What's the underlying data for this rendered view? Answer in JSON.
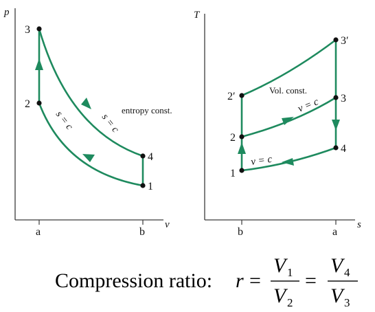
{
  "pv": {
    "y_axis": "p",
    "x_axis": "v",
    "x_tick_left": "a",
    "x_tick_right": "b",
    "points": {
      "p1": "1",
      "p2": "2",
      "p3": "3",
      "p4": "4"
    },
    "curve_label_1": "s = c",
    "curve_label_2": "s = c",
    "annotation": "entropy const."
  },
  "ts": {
    "y_axis": "T",
    "x_axis": "s",
    "x_tick_left": "b",
    "x_tick_right": "a",
    "points": {
      "p1": "1",
      "p2": "2",
      "p2p": "2′",
      "p3": "3",
      "p3p": "3′",
      "p4": "4"
    },
    "curve_label_upper": "v = c",
    "curve_label_lower": "v = c",
    "annotation": "Vol. const."
  },
  "formula": {
    "label": "Compression ratio:",
    "r": "r",
    "eq": "=",
    "num1": "V",
    "num1_sub": "1",
    "den1": "V",
    "den1_sub": "2",
    "num2": "V",
    "num2_sub": "4",
    "den2": "V",
    "den2_sub": "3"
  },
  "colors": {
    "process": "#1e8a5e",
    "axis": "#3a3a3a",
    "point": "#111111"
  }
}
